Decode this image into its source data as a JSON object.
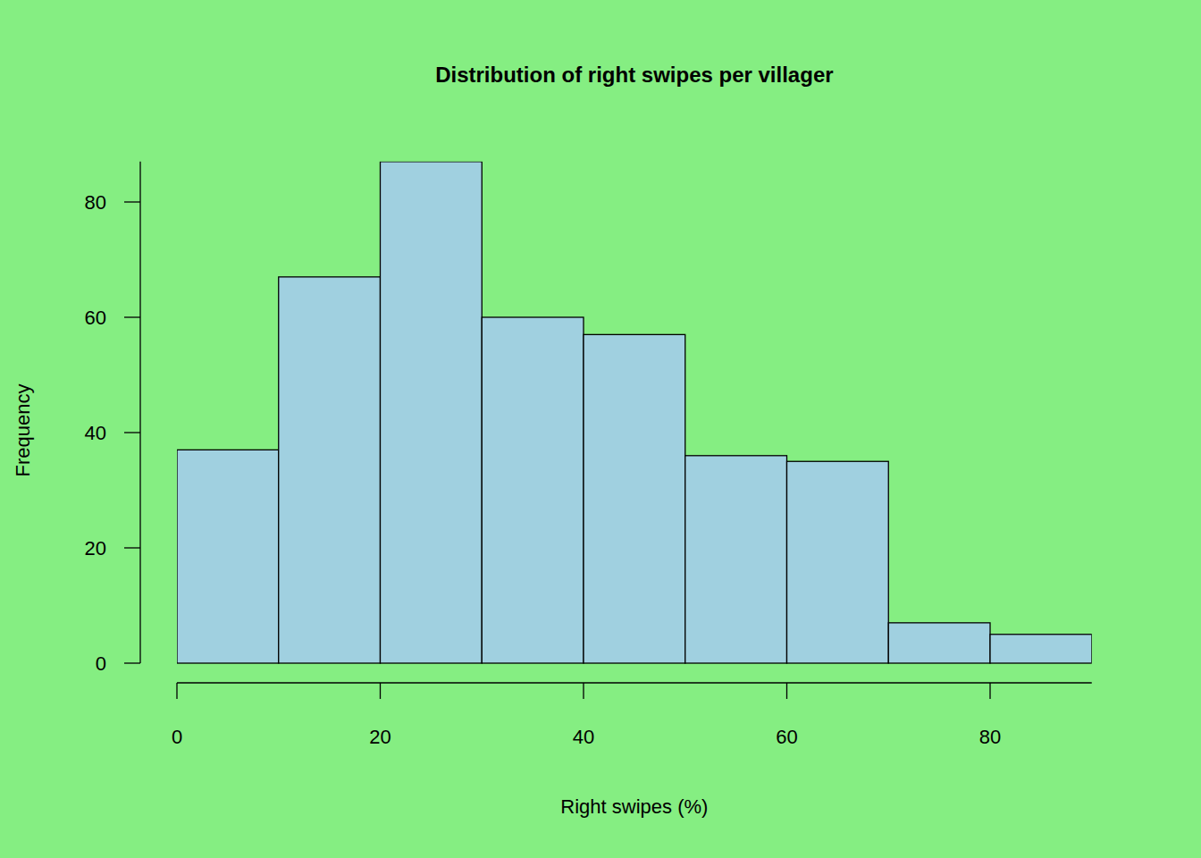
{
  "chart_data": {
    "type": "histogram",
    "title": "Distribution of right swipes per villager",
    "x_label": "Right swipes (%)",
    "y_label": "Frequency",
    "bins": [
      0,
      10,
      20,
      30,
      40,
      50,
      60,
      70,
      80,
      90
    ],
    "values": [
      37,
      67,
      87,
      60,
      57,
      36,
      35,
      7,
      5
    ],
    "color": "#a0d0e0",
    "xlim": [
      0,
      90
    ],
    "ylim": [
      0,
      87
    ],
    "xticks": [
      0,
      20,
      40,
      60,
      80
    ],
    "yticks": [
      0,
      20,
      40,
      60,
      80
    ]
  }
}
